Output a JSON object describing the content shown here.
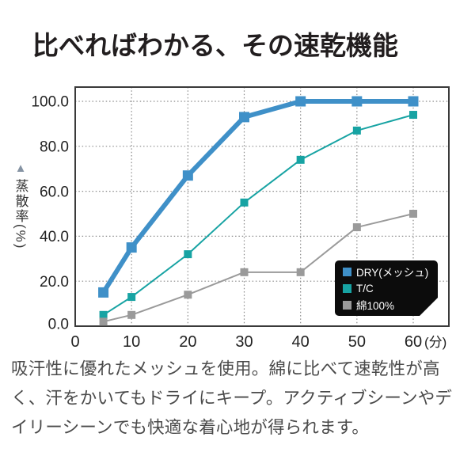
{
  "title": "比べればわかる、その速乾機能",
  "description": "吸汗性に優れたメッシュを使用。綿に比べて速乾性が高く、汗をかいてもドライにキープ。アクティブシーンやデイリーシーンでも快適な着心地が得られます。",
  "icons": {
    "arrow_up": "▲"
  },
  "colors": {
    "title": "#221e1f",
    "body_text": "#4a4a4a",
    "axis_frame": "#3a3a3a",
    "gridline": "#8a8a8a",
    "tick_text": "#222222",
    "legend_bg": "#0c0c0c",
    "legend_text": "#ffffff",
    "ylabel_arrow": "#8593a3"
  },
  "chart_data": {
    "type": "line",
    "title": "比べればわかる、その速乾機能",
    "ylabel": "蒸散率(%)",
    "x_unit_suffix": "(分)",
    "x": [
      5,
      10,
      20,
      30,
      40,
      50,
      60
    ],
    "x_ticks": [
      0,
      10,
      20,
      30,
      40,
      50,
      60
    ],
    "y_ticks": [
      "0.0",
      "20.0",
      "40.0",
      "60.0",
      "80.0",
      "100.0"
    ],
    "y_tick_values": [
      0,
      20,
      40,
      60,
      80,
      100
    ],
    "xlim": [
      0,
      66
    ],
    "ylim": [
      0,
      100
    ],
    "grid": "dotted",
    "legend_position": "bottom-right",
    "series": [
      {
        "name": "DRY(メッシュ)",
        "color": "#3f90c8",
        "line_width": 6,
        "marker_size": 13,
        "values": [
          15,
          35,
          67,
          93,
          100,
          100,
          100
        ]
      },
      {
        "name": "T/C",
        "color": "#17a3a3",
        "line_width": 2,
        "marker_size": 10,
        "values": [
          5,
          13,
          32,
          55,
          74,
          87,
          94
        ]
      },
      {
        "name": "綿100%",
        "color": "#9a9a9a",
        "line_width": 2,
        "marker_size": 10,
        "values": [
          2,
          5,
          14,
          24,
          24,
          44,
          50
        ]
      }
    ]
  }
}
